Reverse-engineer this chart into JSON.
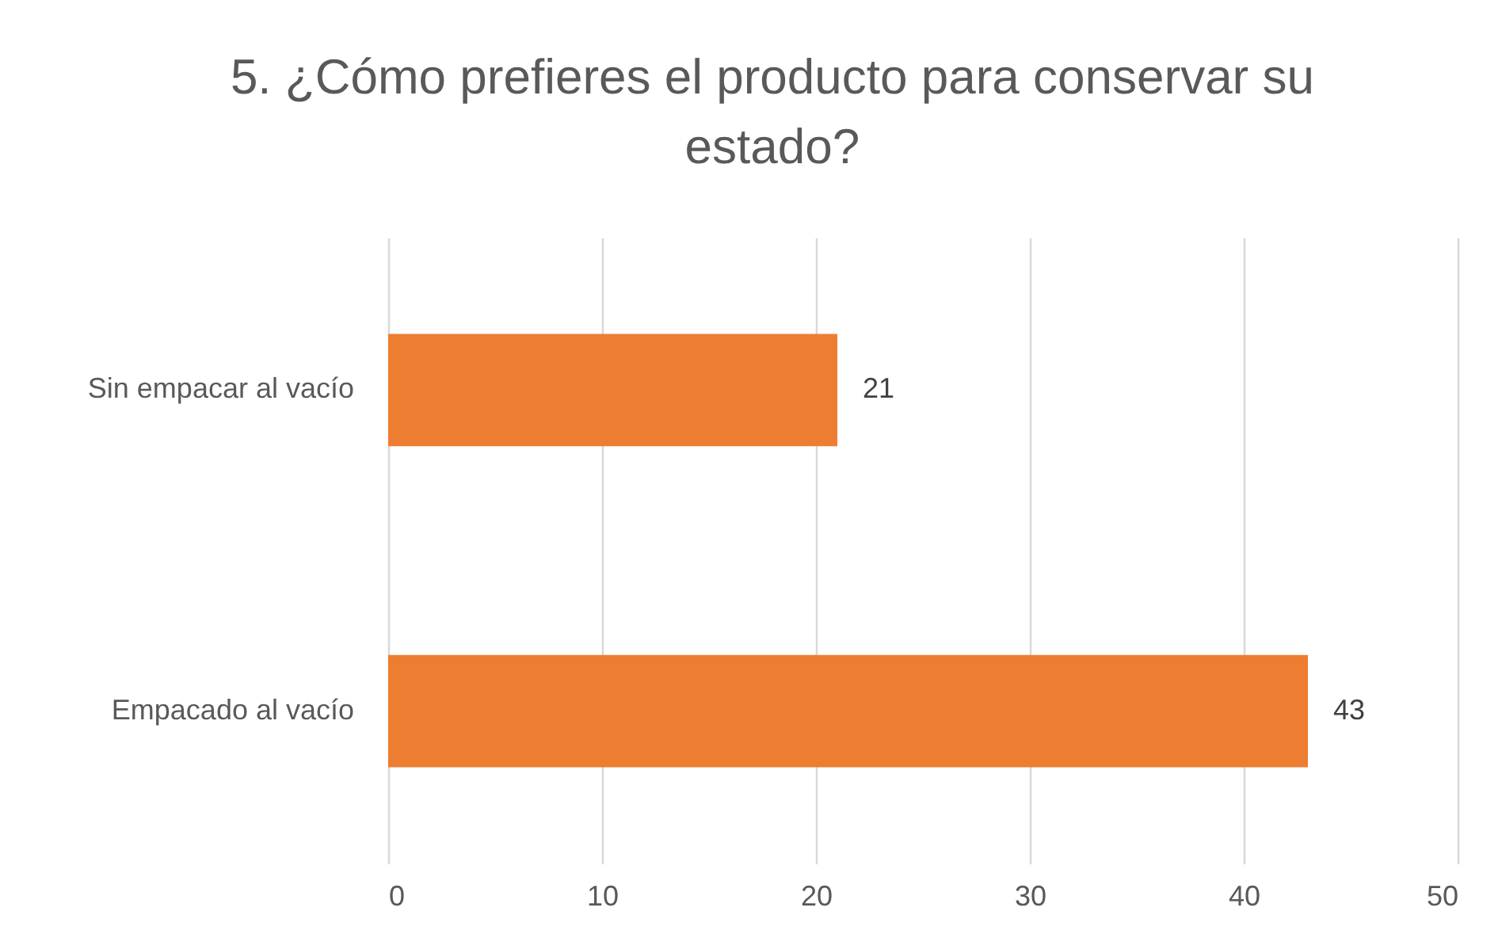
{
  "chart_data": {
    "type": "bar",
    "orientation": "horizontal",
    "title": "5. ¿Cómo prefieres el producto para conservar su estado?",
    "categories": [
      "Sin empacar al vacío",
      "Empacado al vacío"
    ],
    "values": [
      21,
      43
    ],
    "color": "#ed7d31",
    "xlim": [
      0,
      50
    ],
    "xticks": [
      0,
      10,
      20,
      30,
      40,
      50
    ],
    "grid": "x",
    "data_labels": true
  }
}
